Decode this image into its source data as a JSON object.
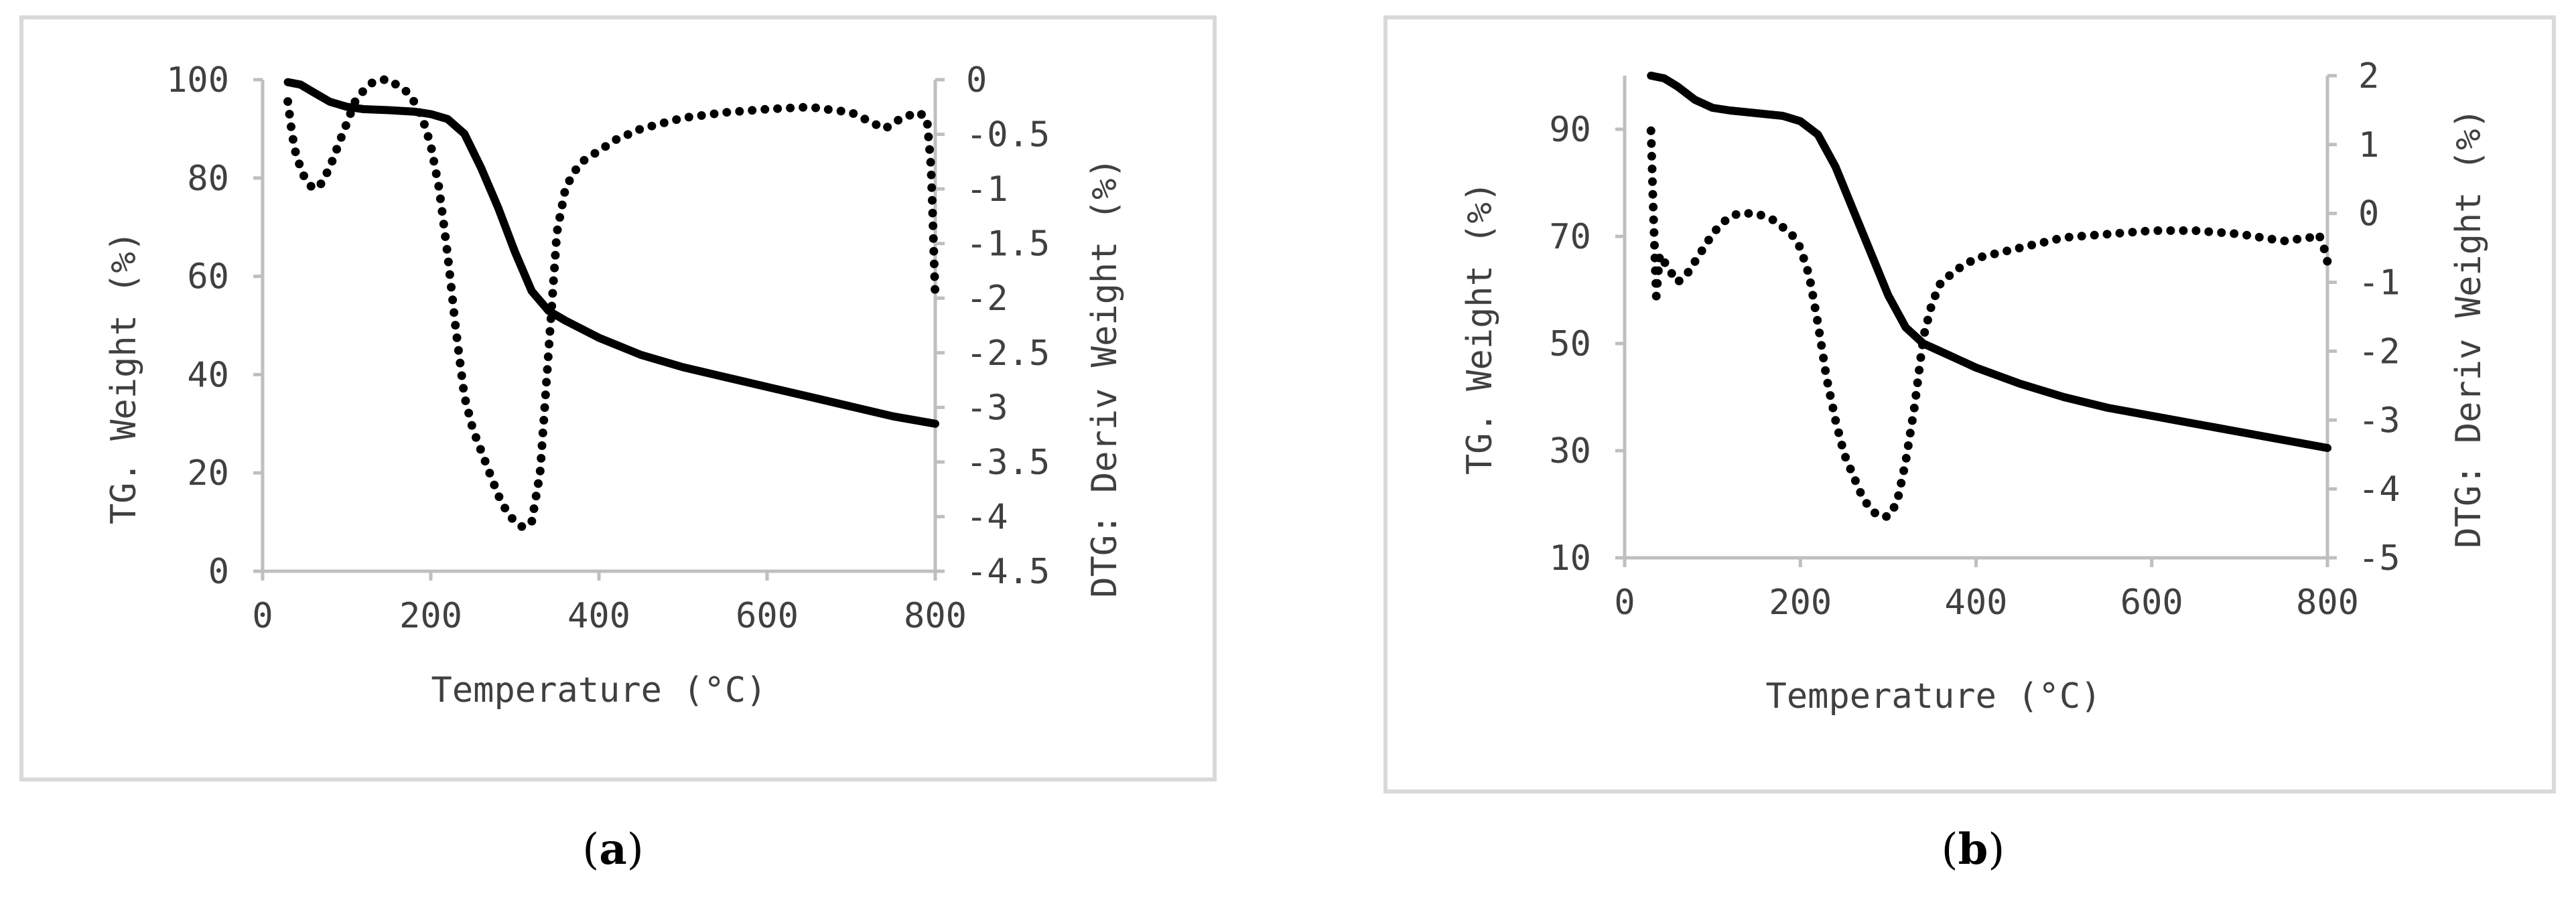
{
  "chart_data": [
    {
      "type": "line",
      "panel_label": "a",
      "xlabel": "Temperature (°C)",
      "ylabel": "TG. Weight (%)",
      "y2label": "DTG: Deriv Weight (%)",
      "xlim": [
        0,
        800
      ],
      "ylim": [
        0,
        100
      ],
      "y2lim": [
        -4.5,
        0
      ],
      "x_ticks": [
        "0",
        "200",
        "400",
        "600",
        "800"
      ],
      "y_ticks": [
        "0",
        "20",
        "40",
        "60",
        "80",
        "100"
      ],
      "y2_ticks": [
        "0",
        "-0.5",
        "-1",
        "-1.5",
        "-2",
        "-2.5",
        "-3",
        "-3.5",
        "-4",
        "-4.5"
      ],
      "y2_tick_values": [
        0,
        -0.5,
        -1,
        -1.5,
        -2,
        -2.5,
        -3,
        -3.5,
        -4,
        -4.5
      ],
      "grid": false,
      "series": [
        {
          "style": "solid",
          "axis": "left",
          "x": [
            30,
            45,
            60,
            80,
            100,
            120,
            150,
            180,
            200,
            220,
            240,
            260,
            280,
            300,
            320,
            340,
            360,
            400,
            450,
            500,
            550,
            600,
            650,
            700,
            750,
            800
          ],
          "y": [
            99.5,
            99,
            97.5,
            95.5,
            94.5,
            94,
            93.8,
            93.5,
            93,
            92,
            89,
            82,
            74,
            65,
            57,
            53,
            51,
            47.5,
            44,
            41.5,
            39.5,
            37.5,
            35.5,
            33.5,
            31.5,
            30
          ]
        },
        {
          "style": "dotted",
          "axis": "right",
          "x": [
            30,
            35,
            40,
            50,
            60,
            70,
            80,
            90,
            100,
            110,
            120,
            130,
            140,
            150,
            160,
            170,
            180,
            190,
            200,
            210,
            220,
            230,
            240,
            250,
            260,
            270,
            280,
            290,
            300,
            310,
            320,
            330,
            340,
            350,
            360,
            370,
            380,
            400,
            420,
            450,
            500,
            550,
            600,
            650,
            700,
            740,
            760,
            780,
            790,
            795,
            798,
            800
          ],
          "y": [
            -0.2,
            -0.5,
            -0.7,
            -0.9,
            -1.0,
            -0.95,
            -0.8,
            -0.6,
            -0.4,
            -0.2,
            -0.1,
            -0.03,
            0,
            0,
            -0.05,
            -0.1,
            -0.2,
            -0.35,
            -0.6,
            -1.0,
            -1.6,
            -2.3,
            -2.9,
            -3.2,
            -3.4,
            -3.6,
            -3.8,
            -3.95,
            -4.05,
            -4.1,
            -4.05,
            -3.6,
            -2.5,
            -1.4,
            -1.0,
            -0.85,
            -0.75,
            -0.65,
            -0.55,
            -0.45,
            -0.35,
            -0.3,
            -0.27,
            -0.25,
            -0.3,
            -0.45,
            -0.35,
            -0.3,
            -0.35,
            -0.8,
            -1.5,
            -2.0
          ]
        }
      ],
      "caption": "(a)"
    },
    {
      "type": "line",
      "panel_label": "b",
      "xlabel": "Temperature (°C)",
      "ylabel": "TG. Weight (%)",
      "y2label": "DTG: Deriv Weight (%)",
      "xlim": [
        0,
        800
      ],
      "ylim": [
        10,
        100
      ],
      "y2lim": [
        -5,
        2
      ],
      "x_ticks": [
        "0",
        "200",
        "400",
        "600",
        "800"
      ],
      "y_ticks": [
        "10",
        "30",
        "50",
        "70",
        "90"
      ],
      "y_tick_values": [
        10,
        30,
        50,
        70,
        90
      ],
      "y2_ticks": [
        "2",
        "1",
        "0",
        "-1",
        "-2",
        "-3",
        "-4",
        "-5"
      ],
      "y2_tick_values": [
        2,
        1,
        0,
        -1,
        -2,
        -3,
        -4,
        -5
      ],
      "grid": false,
      "series": [
        {
          "style": "solid",
          "axis": "left",
          "x": [
            30,
            45,
            60,
            80,
            100,
            120,
            150,
            180,
            200,
            220,
            240,
            260,
            280,
            300,
            320,
            340,
            360,
            400,
            450,
            500,
            550,
            600,
            650,
            700,
            750,
            800
          ],
          "y": [
            100,
            99.5,
            98,
            95.5,
            94,
            93.5,
            93,
            92.5,
            91.5,
            89,
            83,
            75,
            67,
            59,
            53,
            50,
            48.5,
            45.5,
            42.5,
            40,
            38,
            36.5,
            35,
            33.5,
            32,
            30.5
          ]
        },
        {
          "style": "dotted",
          "axis": "right",
          "x": [
            30,
            32,
            34,
            36,
            40,
            50,
            60,
            70,
            80,
            90,
            100,
            110,
            120,
            130,
            140,
            150,
            160,
            170,
            180,
            190,
            200,
            210,
            220,
            230,
            240,
            250,
            260,
            270,
            280,
            290,
            300,
            310,
            320,
            330,
            340,
            350,
            360,
            380,
            400,
            450,
            500,
            550,
            600,
            650,
            700,
            750,
            780,
            790,
            795,
            800
          ],
          "y": [
            1.2,
            0.3,
            -0.5,
            -1.2,
            -0.6,
            -0.8,
            -1.0,
            -0.9,
            -0.7,
            -0.5,
            -0.3,
            -0.15,
            -0.05,
            0,
            0,
            0,
            -0.05,
            -0.1,
            -0.2,
            -0.3,
            -0.5,
            -0.9,
            -1.6,
            -2.4,
            -3.0,
            -3.5,
            -3.8,
            -4.1,
            -4.3,
            -4.4,
            -4.4,
            -4.2,
            -3.6,
            -2.8,
            -1.8,
            -1.3,
            -1.0,
            -0.8,
            -0.65,
            -0.5,
            -0.35,
            -0.3,
            -0.25,
            -0.25,
            -0.3,
            -0.4,
            -0.35,
            -0.3,
            -0.45,
            -0.7
          ]
        }
      ],
      "caption": "(b)"
    }
  ]
}
